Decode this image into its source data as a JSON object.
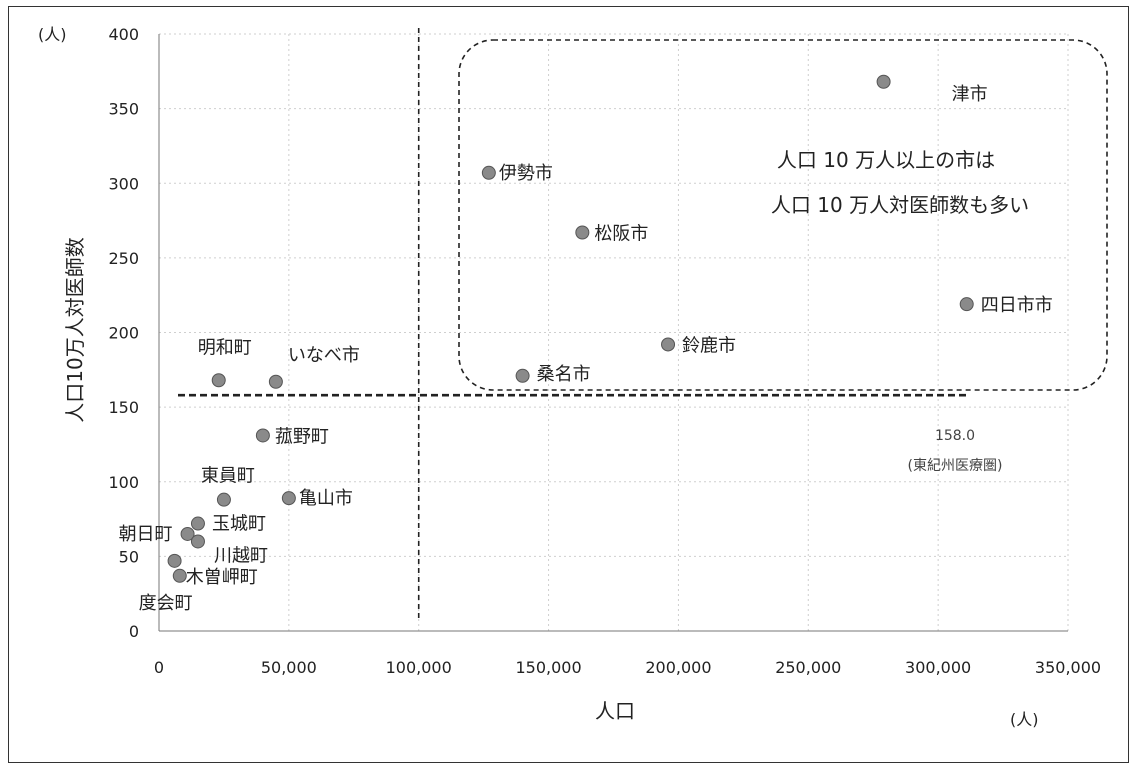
{
  "chart_data": {
    "type": "scatter",
    "title": "",
    "xlabel": "人口",
    "ylabel": "人口10万人対医師数",
    "x_unit": "(人)",
    "y_unit": "(人)",
    "xlim": [
      0,
      350000
    ],
    "ylim": [
      0,
      400
    ],
    "x_ticks": [
      "0",
      "50,000",
      "100,000",
      "150,000",
      "200,000",
      "250,000",
      "300,000",
      "350,000"
    ],
    "y_ticks": [
      "0",
      "50",
      "100",
      "150",
      "200",
      "250",
      "300",
      "350",
      "400"
    ],
    "grid": true,
    "points": [
      {
        "label": "津市",
        "x": 279000,
        "y": 368
      },
      {
        "label": "伊勢市",
        "x": 127000,
        "y": 307
      },
      {
        "label": "松阪市",
        "x": 163000,
        "y": 267
      },
      {
        "label": "四日市市",
        "x": 311000,
        "y": 219
      },
      {
        "label": "鈴鹿市",
        "x": 196000,
        "y": 192
      },
      {
        "label": "桑名市",
        "x": 140000,
        "y": 171
      },
      {
        "label": "明和町",
        "x": 23000,
        "y": 168
      },
      {
        "label": "いなべ市",
        "x": 45000,
        "y": 167
      },
      {
        "label": "菰野町",
        "x": 40000,
        "y": 131
      },
      {
        "label": "東員町",
        "x": 25000,
        "y": 88
      },
      {
        "label": "亀山市",
        "x": 50000,
        "y": 89
      },
      {
        "label": "玉城町",
        "x": 15000,
        "y": 72
      },
      {
        "label": "朝日町",
        "x": 11000,
        "y": 65
      },
      {
        "label": "川越町",
        "x": 15000,
        "y": 60
      },
      {
        "label": "木曽岬町",
        "x": 8000,
        "y": 37
      },
      {
        "label": "度会町",
        "x": 6000,
        "y": 47
      }
    ],
    "reference_lines": {
      "vertical_x": 100000,
      "horizontal_y": 158.0,
      "horizontal_value_label": "158.0",
      "horizontal_note": "(東紀州医療圏)"
    },
    "annotation": {
      "line1": "人口 10 万人以上の市は",
      "line2": "人口 10 万人対医師数も多い"
    }
  },
  "colors": {
    "point": "#8a8a8a",
    "grid": "#cfcfcf",
    "axis": "#777777",
    "frame": "#333333"
  }
}
